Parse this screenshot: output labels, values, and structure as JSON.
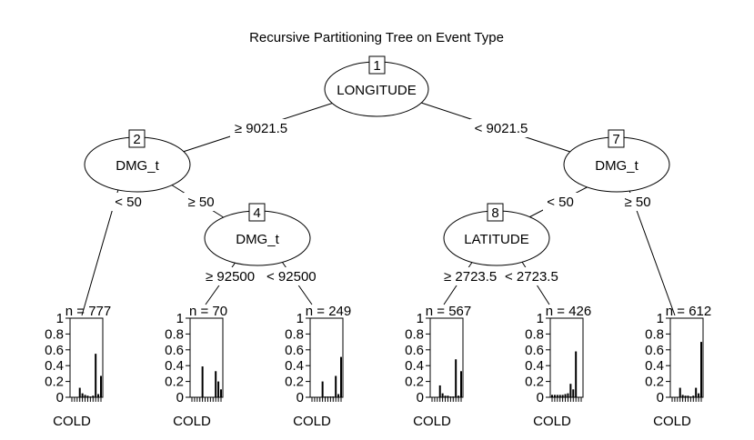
{
  "title": "Recursive Partitioning Tree on Event Type",
  "inner_nodes": [
    {
      "id": "1",
      "variable": "LONGITUDE"
    },
    {
      "id": "2",
      "variable": "DMG_t"
    },
    {
      "id": "4",
      "variable": "DMG_t"
    },
    {
      "id": "7",
      "variable": "DMG_t"
    },
    {
      "id": "8",
      "variable": "LATITUDE"
    }
  ],
  "edges": [
    {
      "from": "1",
      "to": "2",
      "label": "≥ 9021.5"
    },
    {
      "from": "1",
      "to": "7",
      "label": "< 9021.5"
    },
    {
      "from": "2",
      "to": "leaf1",
      "label": "< 50"
    },
    {
      "from": "2",
      "to": "4",
      "label": "≥ 50"
    },
    {
      "from": "4",
      "to": "leaf2",
      "label": "≥ 92500"
    },
    {
      "from": "4",
      "to": "leaf3",
      "label": "< 92500"
    },
    {
      "from": "7",
      "to": "8",
      "label": "< 50"
    },
    {
      "from": "7",
      "to": "leaf6",
      "label": "≥ 50"
    },
    {
      "from": "8",
      "to": "leaf4",
      "label": "≥ 2723.5"
    },
    {
      "from": "8",
      "to": "leaf5",
      "label": "< 2723.5"
    }
  ],
  "y_ticks": [
    "1",
    "0.8",
    "0.6",
    "0.4",
    "0.2",
    "0"
  ],
  "chart_data": [
    {
      "type": "bar",
      "n_label": "n = 777",
      "class_label": "COLD",
      "ylim": [
        0,
        1
      ],
      "values": [
        0,
        0,
        0,
        0.12,
        0.05,
        0.03,
        0.02,
        0.01,
        0.02,
        0.55,
        0.04,
        0.27
      ]
    },
    {
      "type": "bar",
      "n_label": "n = 70",
      "class_label": "COLD",
      "ylim": [
        0,
        1
      ],
      "values": [
        0,
        0,
        0,
        0,
        0.39,
        0,
        0,
        0,
        0,
        0.33,
        0.2,
        0.1
      ]
    },
    {
      "type": "bar",
      "n_label": "n = 249",
      "class_label": "COLD",
      "ylim": [
        0,
        1
      ],
      "values": [
        0,
        0,
        0,
        0,
        0.2,
        0.01,
        0.01,
        0.01,
        0.01,
        0.27,
        0.04,
        0.51
      ]
    },
    {
      "type": "bar",
      "n_label": "n = 567",
      "class_label": "COLD",
      "ylim": [
        0,
        1
      ],
      "values": [
        0,
        0,
        0,
        0.15,
        0.05,
        0.02,
        0.02,
        0.01,
        0.01,
        0.48,
        0.02,
        0.33
      ]
    },
    {
      "type": "bar",
      "n_label": "n = 426",
      "class_label": "COLD",
      "ylim": [
        0,
        1
      ],
      "values": [
        0.03,
        0.03,
        0.03,
        0.03,
        0.03,
        0.04,
        0.05,
        0.17,
        0.1,
        0.58,
        0,
        0
      ]
    },
    {
      "type": "bar",
      "n_label": "n = 612",
      "class_label": "COLD",
      "ylim": [
        0,
        1
      ],
      "values": [
        0,
        0,
        0,
        0.12,
        0.03,
        0.02,
        0.02,
        0.01,
        0.02,
        0.12,
        0.05,
        0.7
      ]
    }
  ]
}
